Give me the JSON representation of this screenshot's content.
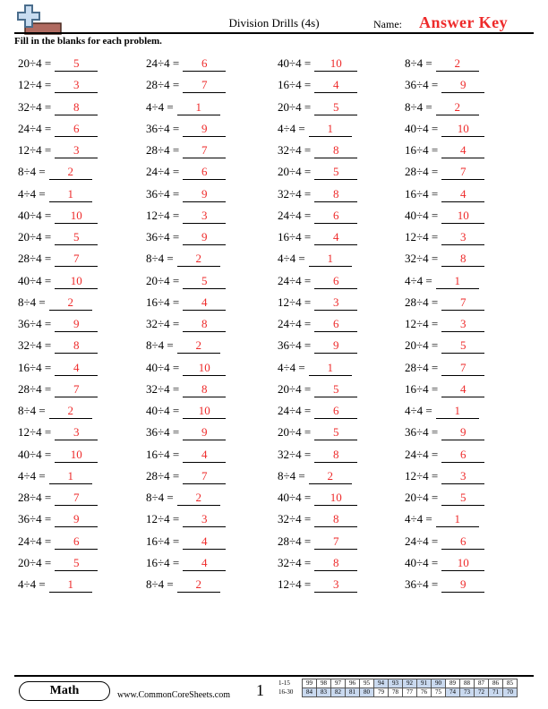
{
  "header": {
    "title": "Division Drills (4s)",
    "name_label": "Name:",
    "answer_key": "Answer Key",
    "instructions": "Fill in the blanks for each problem."
  },
  "problems": [
    {
      "q": "20÷4 =",
      "a": "5"
    },
    {
      "q": "24÷4 =",
      "a": "6"
    },
    {
      "q": "40÷4 =",
      "a": "10"
    },
    {
      "q": "8÷4 =",
      "a": "2"
    },
    {
      "q": "12÷4 =",
      "a": "3"
    },
    {
      "q": "28÷4 =",
      "a": "7"
    },
    {
      "q": "16÷4 =",
      "a": "4"
    },
    {
      "q": "36÷4 =",
      "a": "9"
    },
    {
      "q": "32÷4 =",
      "a": "8"
    },
    {
      "q": "4÷4 =",
      "a": "1"
    },
    {
      "q": "20÷4 =",
      "a": "5"
    },
    {
      "q": "8÷4 =",
      "a": "2"
    },
    {
      "q": "24÷4 =",
      "a": "6"
    },
    {
      "q": "36÷4 =",
      "a": "9"
    },
    {
      "q": "4÷4 =",
      "a": "1"
    },
    {
      "q": "40÷4 =",
      "a": "10"
    },
    {
      "q": "12÷4 =",
      "a": "3"
    },
    {
      "q": "28÷4 =",
      "a": "7"
    },
    {
      "q": "32÷4 =",
      "a": "8"
    },
    {
      "q": "16÷4 =",
      "a": "4"
    },
    {
      "q": "8÷4 =",
      "a": "2"
    },
    {
      "q": "24÷4 =",
      "a": "6"
    },
    {
      "q": "20÷4 =",
      "a": "5"
    },
    {
      "q": "28÷4 =",
      "a": "7"
    },
    {
      "q": "4÷4 =",
      "a": "1"
    },
    {
      "q": "36÷4 =",
      "a": "9"
    },
    {
      "q": "32÷4 =",
      "a": "8"
    },
    {
      "q": "16÷4 =",
      "a": "4"
    },
    {
      "q": "40÷4 =",
      "a": "10"
    },
    {
      "q": "12÷4 =",
      "a": "3"
    },
    {
      "q": "24÷4 =",
      "a": "6"
    },
    {
      "q": "40÷4 =",
      "a": "10"
    },
    {
      "q": "20÷4 =",
      "a": "5"
    },
    {
      "q": "36÷4 =",
      "a": "9"
    },
    {
      "q": "16÷4 =",
      "a": "4"
    },
    {
      "q": "12÷4 =",
      "a": "3"
    },
    {
      "q": "28÷4 =",
      "a": "7"
    },
    {
      "q": "8÷4 =",
      "a": "2"
    },
    {
      "q": "4÷4 =",
      "a": "1"
    },
    {
      "q": "32÷4 =",
      "a": "8"
    },
    {
      "q": "40÷4 =",
      "a": "10"
    },
    {
      "q": "20÷4 =",
      "a": "5"
    },
    {
      "q": "24÷4 =",
      "a": "6"
    },
    {
      "q": "4÷4 =",
      "a": "1"
    },
    {
      "q": "8÷4 =",
      "a": "2"
    },
    {
      "q": "16÷4 =",
      "a": "4"
    },
    {
      "q": "12÷4 =",
      "a": "3"
    },
    {
      "q": "28÷4 =",
      "a": "7"
    },
    {
      "q": "36÷4 =",
      "a": "9"
    },
    {
      "q": "32÷4 =",
      "a": "8"
    },
    {
      "q": "24÷4 =",
      "a": "6"
    },
    {
      "q": "12÷4 =",
      "a": "3"
    },
    {
      "q": "32÷4 =",
      "a": "8"
    },
    {
      "q": "8÷4 =",
      "a": "2"
    },
    {
      "q": "36÷4 =",
      "a": "9"
    },
    {
      "q": "20÷4 =",
      "a": "5"
    },
    {
      "q": "16÷4 =",
      "a": "4"
    },
    {
      "q": "40÷4 =",
      "a": "10"
    },
    {
      "q": "4÷4 =",
      "a": "1"
    },
    {
      "q": "28÷4 =",
      "a": "7"
    },
    {
      "q": "28÷4 =",
      "a": "7"
    },
    {
      "q": "32÷4 =",
      "a": "8"
    },
    {
      "q": "20÷4 =",
      "a": "5"
    },
    {
      "q": "16÷4 =",
      "a": "4"
    },
    {
      "q": "8÷4 =",
      "a": "2"
    },
    {
      "q": "40÷4 =",
      "a": "10"
    },
    {
      "q": "24÷4 =",
      "a": "6"
    },
    {
      "q": "4÷4 =",
      "a": "1"
    },
    {
      "q": "12÷4 =",
      "a": "3"
    },
    {
      "q": "36÷4 =",
      "a": "9"
    },
    {
      "q": "20÷4 =",
      "a": "5"
    },
    {
      "q": "36÷4 =",
      "a": "9"
    },
    {
      "q": "40÷4 =",
      "a": "10"
    },
    {
      "q": "16÷4 =",
      "a": "4"
    },
    {
      "q": "32÷4 =",
      "a": "8"
    },
    {
      "q": "24÷4 =",
      "a": "6"
    },
    {
      "q": "4÷4 =",
      "a": "1"
    },
    {
      "q": "28÷4 =",
      "a": "7"
    },
    {
      "q": "8÷4 =",
      "a": "2"
    },
    {
      "q": "12÷4 =",
      "a": "3"
    },
    {
      "q": "28÷4 =",
      "a": "7"
    },
    {
      "q": "8÷4 =",
      "a": "2"
    },
    {
      "q": "40÷4 =",
      "a": "10"
    },
    {
      "q": "20÷4 =",
      "a": "5"
    },
    {
      "q": "36÷4 =",
      "a": "9"
    },
    {
      "q": "12÷4 =",
      "a": "3"
    },
    {
      "q": "32÷4 =",
      "a": "8"
    },
    {
      "q": "4÷4 =",
      "a": "1"
    },
    {
      "q": "24÷4 =",
      "a": "6"
    },
    {
      "q": "16÷4 =",
      "a": "4"
    },
    {
      "q": "28÷4 =",
      "a": "7"
    },
    {
      "q": "24÷4 =",
      "a": "6"
    },
    {
      "q": "20÷4 =",
      "a": "5"
    },
    {
      "q": "16÷4 =",
      "a": "4"
    },
    {
      "q": "32÷4 =",
      "a": "8"
    },
    {
      "q": "40÷4 =",
      "a": "10"
    },
    {
      "q": "4÷4 =",
      "a": "1"
    },
    {
      "q": "8÷4 =",
      "a": "2"
    },
    {
      "q": "12÷4 =",
      "a": "3"
    },
    {
      "q": "36÷4 =",
      "a": "9"
    }
  ],
  "footer": {
    "badge": "Math",
    "site": "www.CommonCoreSheets.com",
    "page_number": "1",
    "score_rows": [
      {
        "label": "1-15",
        "values": [
          "99",
          "98",
          "97",
          "96",
          "95",
          "94",
          "93",
          "92",
          "91",
          "90",
          "89",
          "88",
          "87",
          "86",
          "85"
        ]
      },
      {
        "label": "16-30",
        "values": [
          "84",
          "83",
          "82",
          "81",
          "80",
          "79",
          "78",
          "77",
          "76",
          "75",
          "74",
          "73",
          "72",
          "71",
          "70"
        ]
      }
    ],
    "highlight_color": "#c9d9ef"
  },
  "colors": {
    "answer": "#ee2a2a",
    "logo_fill": "#c8dcf0",
    "logo_stroke": "#4a6d8c",
    "logo_bar": "#b06a60"
  }
}
